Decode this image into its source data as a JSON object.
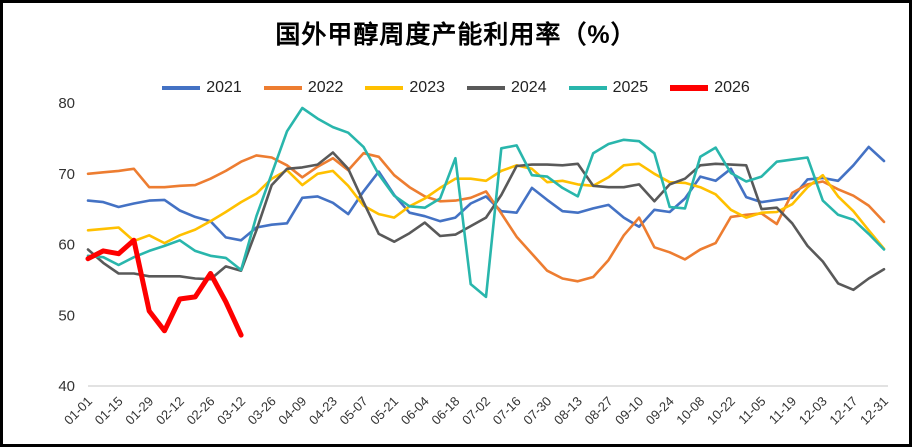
{
  "title": "国外甲醇周度产能利用率（%）",
  "legend": [
    {
      "label": "2021",
      "color": "#4472C4",
      "thick": false
    },
    {
      "label": "2022",
      "color": "#ED7D31",
      "thick": false
    },
    {
      "label": "2023",
      "color": "#FFC000",
      "thick": false
    },
    {
      "label": "2024",
      "color": "#595959",
      "thick": false
    },
    {
      "label": "2025",
      "color": "#29B6AC",
      "thick": false
    },
    {
      "label": "2026",
      "color": "#FE0000",
      "thick": true
    }
  ],
  "chart_data": {
    "type": "line",
    "title": "国外甲醇周度产能利用率（%）",
    "xlabel": "",
    "ylabel": "",
    "ylim": [
      40,
      80
    ],
    "y_ticks": [
      80,
      70,
      60,
      50,
      40
    ],
    "grid": "off",
    "legend_position": "top",
    "x": [
      "01-01",
      "01-08",
      "01-15",
      "01-22",
      "01-29",
      "02-05",
      "02-12",
      "02-19",
      "02-26",
      "03-05",
      "03-12",
      "03-19",
      "03-26",
      "04-02",
      "04-09",
      "04-16",
      "04-23",
      "04-30",
      "05-07",
      "05-14",
      "05-21",
      "05-28",
      "06-04",
      "06-11",
      "06-18",
      "06-25",
      "07-02",
      "07-09",
      "07-16",
      "07-23",
      "07-30",
      "08-06",
      "08-13",
      "08-20",
      "08-27",
      "09-03",
      "09-10",
      "09-17",
      "09-24",
      "10-01",
      "10-08",
      "10-15",
      "10-22",
      "10-29",
      "11-05",
      "11-12",
      "11-19",
      "11-26",
      "12-03",
      "12-10",
      "12-17",
      "12-24",
      "12-31"
    ],
    "x_tick_labels": [
      "01-01",
      "01-15",
      "01-29",
      "02-12",
      "02-26",
      "03-12",
      "03-26",
      "04-09",
      "04-23",
      "05-07",
      "05-21",
      "06-04",
      "06-18",
      "07-02",
      "07-16",
      "07-30",
      "08-13",
      "08-27",
      "09-10",
      "09-24",
      "10-08",
      "10-22",
      "11-05",
      "11-19",
      "12-03",
      "12-17",
      "12-31"
    ],
    "series": [
      {
        "name": "2021",
        "color": "#4472C4",
        "width": 2.6,
        "values": [
          66.2,
          66.0,
          65.3,
          65.8,
          66.2,
          66.3,
          64.8,
          63.9,
          63.3,
          61.0,
          60.6,
          62.4,
          62.8,
          63.0,
          66.6,
          66.8,
          65.9,
          64.3,
          67.5,
          70.3,
          67.0,
          64.5,
          64.0,
          63.3,
          63.8,
          65.8,
          66.8,
          64.7,
          64.5,
          68.0,
          66.3,
          64.7,
          64.5,
          65.1,
          65.6,
          63.8,
          62.5,
          64.9,
          64.6,
          66.5,
          69.6,
          69.0,
          70.7,
          66.7,
          66.0,
          66.3,
          66.6,
          69.2,
          69.4,
          69.0,
          71.2,
          73.8,
          71.8
        ]
      },
      {
        "name": "2022",
        "color": "#ED7D31",
        "width": 2.6,
        "values": [
          70.0,
          70.2,
          70.4,
          70.7,
          68.1,
          68.1,
          68.3,
          68.4,
          69.3,
          70.4,
          71.7,
          72.6,
          72.3,
          71.2,
          69.5,
          71.0,
          72.2,
          70.5,
          72.9,
          72.4,
          69.8,
          68.1,
          66.8,
          66.1,
          66.2,
          66.6,
          67.5,
          64.4,
          61.1,
          58.7,
          56.3,
          55.2,
          54.8,
          55.4,
          57.8,
          61.3,
          63.8,
          59.6,
          58.9,
          57.9,
          59.3,
          60.2,
          63.9,
          64.2,
          64.4,
          62.9,
          67.3,
          68.5,
          68.9,
          67.8,
          66.9,
          65.5,
          63.2
        ]
      },
      {
        "name": "2023",
        "color": "#FFC000",
        "width": 2.6,
        "values": [
          62.0,
          62.2,
          62.4,
          60.5,
          61.3,
          60.2,
          61.3,
          62.1,
          63.3,
          64.6,
          66.0,
          67.2,
          69.3,
          70.5,
          68.4,
          70.0,
          70.4,
          68.3,
          65.5,
          64.3,
          63.8,
          65.4,
          66.5,
          68.0,
          69.3,
          69.3,
          69.0,
          70.4,
          71.2,
          70.7,
          68.8,
          69.0,
          68.5,
          68.3,
          69.5,
          71.2,
          71.4,
          70.0,
          68.8,
          68.7,
          68.1,
          67.1,
          64.9,
          63.8,
          64.5,
          64.6,
          65.7,
          68.1,
          69.8,
          66.8,
          64.7,
          62.0,
          59.4
        ]
      },
      {
        "name": "2024",
        "color": "#595959",
        "width": 2.6,
        "values": [
          59.3,
          57.4,
          55.9,
          55.9,
          55.5,
          55.5,
          55.5,
          55.2,
          55.1,
          56.9,
          56.3,
          62.0,
          68.4,
          70.7,
          70.9,
          71.3,
          73.0,
          70.7,
          66.0,
          61.5,
          60.4,
          61.6,
          63.1,
          61.2,
          61.4,
          62.6,
          63.8,
          67.0,
          71.1,
          71.3,
          71.3,
          71.2,
          71.4,
          68.3,
          68.1,
          68.1,
          68.5,
          66.1,
          68.5,
          69.3,
          71.2,
          71.4,
          71.3,
          71.2,
          65.0,
          65.2,
          63.0,
          59.8,
          57.6,
          54.5,
          53.6,
          55.2,
          56.5
        ]
      },
      {
        "name": "2025",
        "color": "#29B6AC",
        "width": 2.6,
        "values": [
          58.4,
          58.2,
          57.1,
          58.2,
          59.1,
          59.8,
          60.6,
          59.1,
          58.4,
          58.1,
          56.4,
          64.0,
          70.0,
          76.0,
          79.3,
          77.8,
          76.6,
          75.8,
          73.8,
          69.9,
          66.9,
          65.4,
          65.2,
          66.5,
          72.2,
          54.4,
          52.6,
          73.6,
          74.0,
          69.8,
          69.6,
          68.0,
          66.8,
          72.9,
          74.2,
          74.8,
          74.6,
          72.9,
          65.3,
          65.1,
          72.4,
          73.7,
          70.1,
          68.9,
          69.6,
          71.7,
          72.0,
          72.3,
          66.2,
          64.2,
          63.5,
          61.5,
          59.3
        ]
      },
      {
        "name": "2026",
        "color": "#FE0000",
        "width": 5,
        "values": [
          58.0,
          59.1,
          58.7,
          60.6,
          50.6,
          47.8,
          52.3,
          52.6,
          55.9,
          51.9,
          47.2
        ]
      }
    ]
  },
  "axis": {
    "baseline_color": "#D9D9D9",
    "tick_color": "#333333"
  }
}
